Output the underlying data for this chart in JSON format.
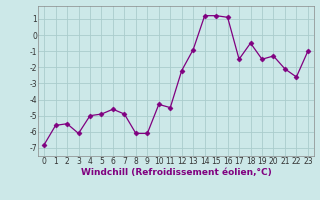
{
  "x": [
    0,
    1,
    2,
    3,
    4,
    5,
    6,
    7,
    8,
    9,
    10,
    11,
    12,
    13,
    14,
    15,
    16,
    17,
    18,
    19,
    20,
    21,
    22,
    23
  ],
  "y": [
    -6.8,
    -5.6,
    -5.5,
    -6.1,
    -5.0,
    -4.9,
    -4.6,
    -4.9,
    -6.1,
    -6.1,
    -4.3,
    -4.5,
    -2.2,
    -0.9,
    1.2,
    1.2,
    1.1,
    -1.5,
    -0.5,
    -1.5,
    -1.3,
    -2.1,
    -2.6,
    -1.0
  ],
  "line_color": "#800080",
  "marker": "D",
  "marker_size": 2.5,
  "bg_color": "#cce8e8",
  "grid_color": "#aacccc",
  "xlabel": "Windchill (Refroidissement éolien,°C)",
  "ylim": [
    -7.5,
    1.8
  ],
  "xlim": [
    -0.5,
    23.5
  ],
  "yticks": [
    -7,
    -6,
    -5,
    -4,
    -3,
    -2,
    -1,
    0,
    1
  ],
  "xticks": [
    0,
    1,
    2,
    3,
    4,
    5,
    6,
    7,
    8,
    9,
    10,
    11,
    12,
    13,
    14,
    15,
    16,
    17,
    18,
    19,
    20,
    21,
    22,
    23
  ],
  "tick_fontsize": 5.5,
  "xlabel_fontsize": 6.5
}
